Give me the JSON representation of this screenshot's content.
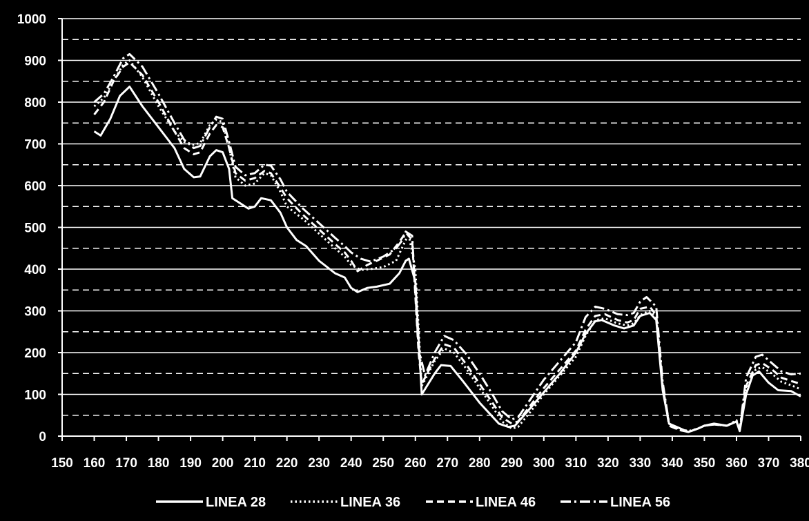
{
  "chart_data": {
    "type": "line",
    "title": "",
    "xlabel": "",
    "ylabel": "",
    "xlim": [
      150,
      380
    ],
    "ylim": [
      0,
      1000
    ],
    "x_ticks": [
      "150",
      "160",
      "170",
      "180",
      "190",
      "200",
      "210",
      "220",
      "230",
      "240",
      "250",
      "260",
      "270",
      "280",
      "290",
      "300",
      "310",
      "320",
      "330",
      "340",
      "350",
      "360",
      "370",
      "380"
    ],
    "y_ticks": [
      "0",
      "100",
      "200",
      "300",
      "400",
      "500",
      "600",
      "700",
      "800",
      "900",
      "1000"
    ],
    "grid": "major solid lines every 100, dashed lines at 50 intervals",
    "legend_position": "bottom",
    "colors": {
      "background": "#000000",
      "line": "#ffffff"
    },
    "series": [
      {
        "name": "LINEA 28",
        "style": "solid",
        "points": [
          [
            160,
            730
          ],
          [
            162,
            720
          ],
          [
            165,
            760
          ],
          [
            168,
            815
          ],
          [
            171,
            837
          ],
          [
            175,
            790
          ],
          [
            180,
            740
          ],
          [
            185,
            690
          ],
          [
            188,
            640
          ],
          [
            191,
            620
          ],
          [
            193,
            622
          ],
          [
            196,
            670
          ],
          [
            198,
            685
          ],
          [
            200,
            680
          ],
          [
            202,
            640
          ],
          [
            203,
            570
          ],
          [
            205,
            560
          ],
          [
            208,
            545
          ],
          [
            210,
            550
          ],
          [
            212,
            570
          ],
          [
            215,
            565
          ],
          [
            218,
            535
          ],
          [
            220,
            500
          ],
          [
            223,
            470
          ],
          [
            226,
            455
          ],
          [
            230,
            420
          ],
          [
            235,
            390
          ],
          [
            238,
            380
          ],
          [
            240,
            355
          ],
          [
            242,
            345
          ],
          [
            245,
            355
          ],
          [
            248,
            358
          ],
          [
            252,
            365
          ],
          [
            255,
            390
          ],
          [
            257,
            420
          ],
          [
            258,
            425
          ],
          [
            260,
            370
          ],
          [
            262,
            100
          ],
          [
            266,
            150
          ],
          [
            268,
            170
          ],
          [
            271,
            168
          ],
          [
            275,
            130
          ],
          [
            280,
            80
          ],
          [
            283,
            55
          ],
          [
            286,
            30
          ],
          [
            289,
            22
          ],
          [
            291,
            25
          ],
          [
            295,
            60
          ],
          [
            300,
            105
          ],
          [
            305,
            150
          ],
          [
            310,
            200
          ],
          [
            313,
            245
          ],
          [
            316,
            275
          ],
          [
            318,
            278
          ],
          [
            322,
            265
          ],
          [
            325,
            258
          ],
          [
            328,
            265
          ],
          [
            330,
            288
          ],
          [
            333,
            295
          ],
          [
            335,
            278
          ],
          [
            337,
            110
          ],
          [
            339,
            30
          ],
          [
            342,
            20
          ],
          [
            345,
            10
          ],
          [
            348,
            18
          ],
          [
            350,
            25
          ],
          [
            353,
            30
          ],
          [
            357,
            25
          ],
          [
            360,
            35
          ],
          [
            361,
            12
          ],
          [
            363,
            100
          ],
          [
            365,
            145
          ],
          [
            367,
            155
          ],
          [
            370,
            128
          ],
          [
            373,
            110
          ],
          [
            377,
            108
          ],
          [
            380,
            95
          ]
        ]
      },
      {
        "name": "LINEA 36",
        "style": "dotted",
        "points": [
          [
            160,
            790
          ],
          [
            163,
            810
          ],
          [
            166,
            850
          ],
          [
            169,
            890
          ],
          [
            171,
            900
          ],
          [
            175,
            860
          ],
          [
            180,
            790
          ],
          [
            185,
            730
          ],
          [
            188,
            705
          ],
          [
            191,
            698
          ],
          [
            193,
            702
          ],
          [
            196,
            745
          ],
          [
            198,
            758
          ],
          [
            200,
            752
          ],
          [
            202,
            690
          ],
          [
            204,
            620
          ],
          [
            207,
            600
          ],
          [
            210,
            605
          ],
          [
            213,
            630
          ],
          [
            215,
            625
          ],
          [
            218,
            585
          ],
          [
            220,
            550
          ],
          [
            225,
            520
          ],
          [
            230,
            485
          ],
          [
            235,
            450
          ],
          [
            238,
            430
          ],
          [
            240,
            410
          ],
          [
            243,
            398
          ],
          [
            246,
            400
          ],
          [
            250,
            405
          ],
          [
            254,
            420
          ],
          [
            257,
            470
          ],
          [
            258,
            480
          ],
          [
            260,
            400
          ],
          [
            262,
            120
          ],
          [
            266,
            180
          ],
          [
            269,
            210
          ],
          [
            272,
            200
          ],
          [
            276,
            160
          ],
          [
            280,
            115
          ],
          [
            284,
            70
          ],
          [
            287,
            35
          ],
          [
            290,
            18
          ],
          [
            292,
            22
          ],
          [
            296,
            60
          ],
          [
            300,
            100
          ],
          [
            305,
            145
          ],
          [
            310,
            190
          ],
          [
            313,
            240
          ],
          [
            316,
            278
          ],
          [
            319,
            282
          ],
          [
            323,
            270
          ],
          [
            326,
            265
          ],
          [
            328,
            270
          ],
          [
            330,
            290
          ],
          [
            333,
            300
          ],
          [
            335,
            285
          ],
          [
            337,
            120
          ],
          [
            339,
            30
          ],
          [
            342,
            18
          ],
          [
            345,
            12
          ],
          [
            348,
            18
          ],
          [
            350,
            25
          ],
          [
            353,
            28
          ],
          [
            357,
            25
          ],
          [
            360,
            38
          ],
          [
            361,
            15
          ],
          [
            363,
            110
          ],
          [
            366,
            160
          ],
          [
            368,
            165
          ],
          [
            371,
            150
          ],
          [
            374,
            130
          ],
          [
            377,
            122
          ],
          [
            380,
            112
          ]
        ]
      },
      {
        "name": "LINEA 46",
        "style": "dashed",
        "points": [
          [
            160,
            770
          ],
          [
            163,
            800
          ],
          [
            166,
            850
          ],
          [
            169,
            885
          ],
          [
            171,
            895
          ],
          [
            175,
            865
          ],
          [
            180,
            800
          ],
          [
            185,
            730
          ],
          [
            188,
            690
          ],
          [
            191,
            675
          ],
          [
            193,
            680
          ],
          [
            196,
            725
          ],
          [
            198,
            745
          ],
          [
            200,
            740
          ],
          [
            202,
            690
          ],
          [
            204,
            630
          ],
          [
            207,
            612
          ],
          [
            210,
            618
          ],
          [
            213,
            635
          ],
          [
            215,
            630
          ],
          [
            218,
            595
          ],
          [
            220,
            570
          ],
          [
            225,
            530
          ],
          [
            230,
            495
          ],
          [
            235,
            460
          ],
          [
            238,
            440
          ],
          [
            240,
            420
          ],
          [
            242,
            395
          ],
          [
            245,
            410
          ],
          [
            248,
            420
          ],
          [
            252,
            435
          ],
          [
            255,
            465
          ],
          [
            257,
            488
          ],
          [
            259,
            470
          ],
          [
            261,
            200
          ],
          [
            262,
            125
          ],
          [
            266,
            185
          ],
          [
            269,
            220
          ],
          [
            272,
            212
          ],
          [
            276,
            170
          ],
          [
            280,
            125
          ],
          [
            284,
            80
          ],
          [
            287,
            45
          ],
          [
            290,
            30
          ],
          [
            292,
            35
          ],
          [
            296,
            75
          ],
          [
            300,
            115
          ],
          [
            305,
            160
          ],
          [
            310,
            205
          ],
          [
            313,
            255
          ],
          [
            316,
            288
          ],
          [
            319,
            292
          ],
          [
            323,
            278
          ],
          [
            326,
            272
          ],
          [
            328,
            278
          ],
          [
            330,
            305
          ],
          [
            333,
            310
          ],
          [
            335,
            290
          ],
          [
            337,
            120
          ],
          [
            339,
            25
          ],
          [
            342,
            15
          ],
          [
            345,
            10
          ],
          [
            348,
            18
          ],
          [
            350,
            25
          ],
          [
            353,
            28
          ],
          [
            357,
            25
          ],
          [
            360,
            35
          ],
          [
            361,
            15
          ],
          [
            363,
            120
          ],
          [
            366,
            170
          ],
          [
            368,
            175
          ],
          [
            371,
            160
          ],
          [
            374,
            140
          ],
          [
            377,
            132
          ],
          [
            380,
            125
          ]
        ]
      },
      {
        "name": "LINEA 56",
        "style": "dash-dot",
        "points": [
          [
            160,
            800
          ],
          [
            163,
            820
          ],
          [
            166,
            860
          ],
          [
            169,
            905
          ],
          [
            171,
            915
          ],
          [
            175,
            885
          ],
          [
            180,
            820
          ],
          [
            185,
            750
          ],
          [
            188,
            710
          ],
          [
            191,
            690
          ],
          [
            193,
            695
          ],
          [
            196,
            740
          ],
          [
            198,
            765
          ],
          [
            200,
            760
          ],
          [
            202,
            705
          ],
          [
            204,
            645
          ],
          [
            207,
            625
          ],
          [
            210,
            630
          ],
          [
            213,
            650
          ],
          [
            215,
            648
          ],
          [
            218,
            615
          ],
          [
            220,
            585
          ],
          [
            225,
            545
          ],
          [
            230,
            510
          ],
          [
            235,
            475
          ],
          [
            238,
            455
          ],
          [
            240,
            440
          ],
          [
            243,
            425
          ],
          [
            246,
            418
          ],
          [
            250,
            430
          ],
          [
            254,
            450
          ],
          [
            256,
            470
          ],
          [
            257,
            490
          ],
          [
            259,
            480
          ],
          [
            261,
            210
          ],
          [
            263,
            145
          ],
          [
            266,
            200
          ],
          [
            269,
            240
          ],
          [
            272,
            230
          ],
          [
            276,
            195
          ],
          [
            280,
            150
          ],
          [
            284,
            100
          ],
          [
            287,
            60
          ],
          [
            290,
            40
          ],
          [
            292,
            45
          ],
          [
            296,
            90
          ],
          [
            300,
            135
          ],
          [
            305,
            180
          ],
          [
            310,
            225
          ],
          [
            313,
            285
          ],
          [
            316,
            310
          ],
          [
            319,
            305
          ],
          [
            323,
            292
          ],
          [
            326,
            290
          ],
          [
            328,
            295
          ],
          [
            330,
            322
          ],
          [
            332,
            333
          ],
          [
            335,
            310
          ],
          [
            337,
            130
          ],
          [
            339,
            30
          ],
          [
            342,
            15
          ],
          [
            345,
            10
          ],
          [
            348,
            18
          ],
          [
            350,
            25
          ],
          [
            353,
            28
          ],
          [
            357,
            25
          ],
          [
            360,
            35
          ],
          [
            361,
            15
          ],
          [
            363,
            140
          ],
          [
            366,
            190
          ],
          [
            368,
            195
          ],
          [
            371,
            175
          ],
          [
            374,
            155
          ],
          [
            377,
            148
          ],
          [
            380,
            150
          ]
        ]
      }
    ]
  }
}
